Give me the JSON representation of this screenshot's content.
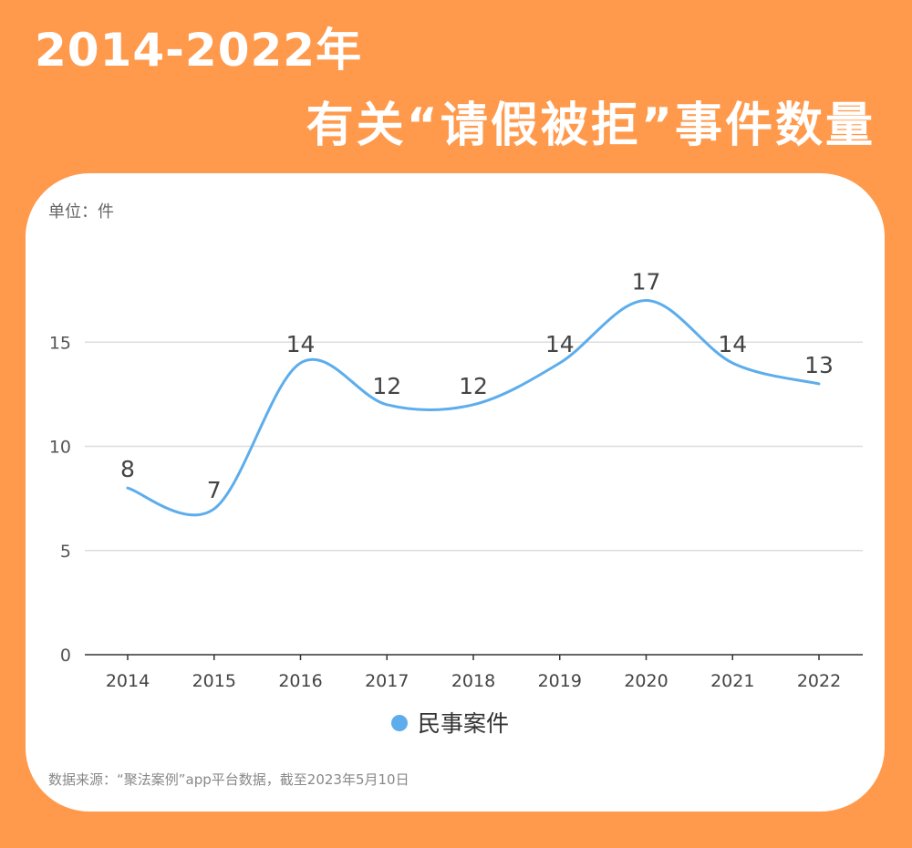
{
  "title": {
    "line1": "2014-2022年",
    "line2": "有关“请假被拒”事件数量"
  },
  "unit_label": "单位：件",
  "source": "数据来源：“聚法案例”app平台数据，截至2023年5月10日",
  "colors": {
    "background": "#FF9A4D",
    "card": "#FFFFFF",
    "line": "#5DADEC",
    "text": "#333333",
    "grid": "#DDDDDD"
  },
  "chart_data": {
    "type": "line",
    "categories": [
      "2014",
      "2015",
      "2016",
      "2017",
      "2018",
      "2019",
      "2020",
      "2021",
      "2022"
    ],
    "series": [
      {
        "name": "民事案件",
        "values": [
          8,
          7,
          14,
          12,
          12,
          14,
          17,
          14,
          13
        ],
        "labels": [
          "8",
          "7",
          "14",
          "12",
          "12",
          "14",
          "17",
          "14",
          "13"
        ],
        "color": "#5DADEC"
      }
    ],
    "yticks": [
      0,
      5,
      10,
      15
    ],
    "ytick_labels": [
      "0",
      "5",
      "10",
      "15"
    ],
    "ylim": [
      0,
      20
    ],
    "xlabel": "",
    "ylabel": "",
    "grid": true,
    "legend": "bottom-center",
    "smooth": true
  }
}
